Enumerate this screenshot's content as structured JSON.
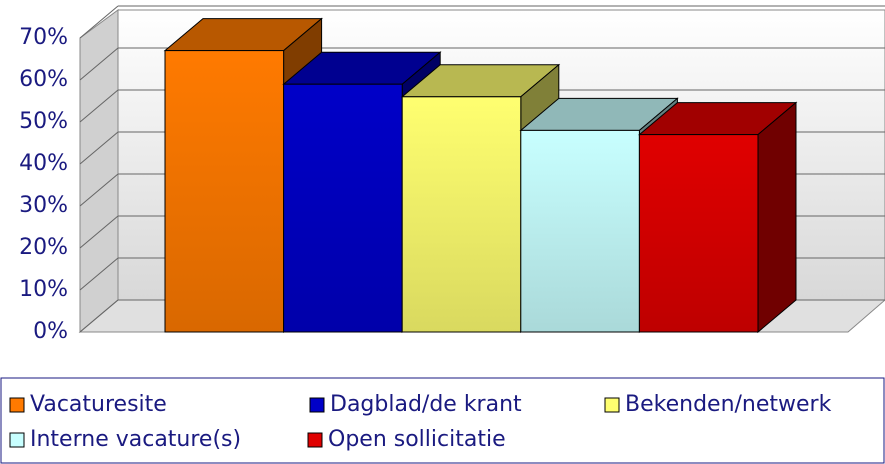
{
  "chart_data": {
    "type": "bar3d",
    "categories": [
      "Vacaturesite",
      "Dagblad/de krant",
      "Bekenden/netwerk",
      "Interne vacature(s)",
      "Open sollicitatie"
    ],
    "values": [
      67,
      59,
      56,
      48,
      47
    ],
    "colors": [
      "#ff7a00",
      "#0000c8",
      "#ffff70",
      "#c8ffff",
      "#e00000"
    ],
    "ylim": [
      0,
      70
    ],
    "yticks": [
      {
        "value": 0,
        "label": "0%"
      },
      {
        "value": 10,
        "label": "10%"
      },
      {
        "value": 20,
        "label": "20%"
      },
      {
        "value": 30,
        "label": "30%"
      },
      {
        "value": 40,
        "label": "40%"
      },
      {
        "value": 50,
        "label": "50%"
      },
      {
        "value": 60,
        "label": "60%"
      },
      {
        "value": 70,
        "label": "70%"
      }
    ],
    "grid": true
  }
}
